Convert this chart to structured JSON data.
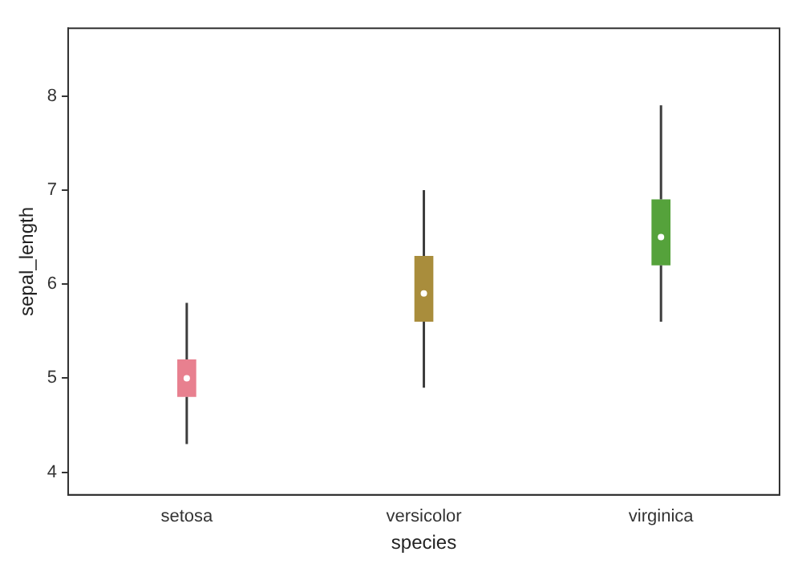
{
  "chart_data": {
    "type": "box",
    "xlabel": "species",
    "ylabel": "sepal_length",
    "categories": [
      "setosa",
      "versicolor",
      "virginica"
    ],
    "boxes": [
      {
        "low": 4.3,
        "q1": 4.8,
        "median": 5.0,
        "q3": 5.2,
        "high": 5.8
      },
      {
        "low": 4.9,
        "q1": 5.6,
        "median": 5.9,
        "q3": 6.3,
        "high": 7.0
      },
      {
        "low": 5.6,
        "q1": 6.2,
        "median": 6.5,
        "q3": 6.9,
        "high": 7.9
      }
    ],
    "colors": [
      "#e8808f",
      "#a98d3c",
      "#55a23b"
    ],
    "ylim": [
      3.76,
      8.72
    ],
    "yticks": [
      4,
      5,
      6,
      7,
      8
    ],
    "grid": false,
    "legend": false
  }
}
